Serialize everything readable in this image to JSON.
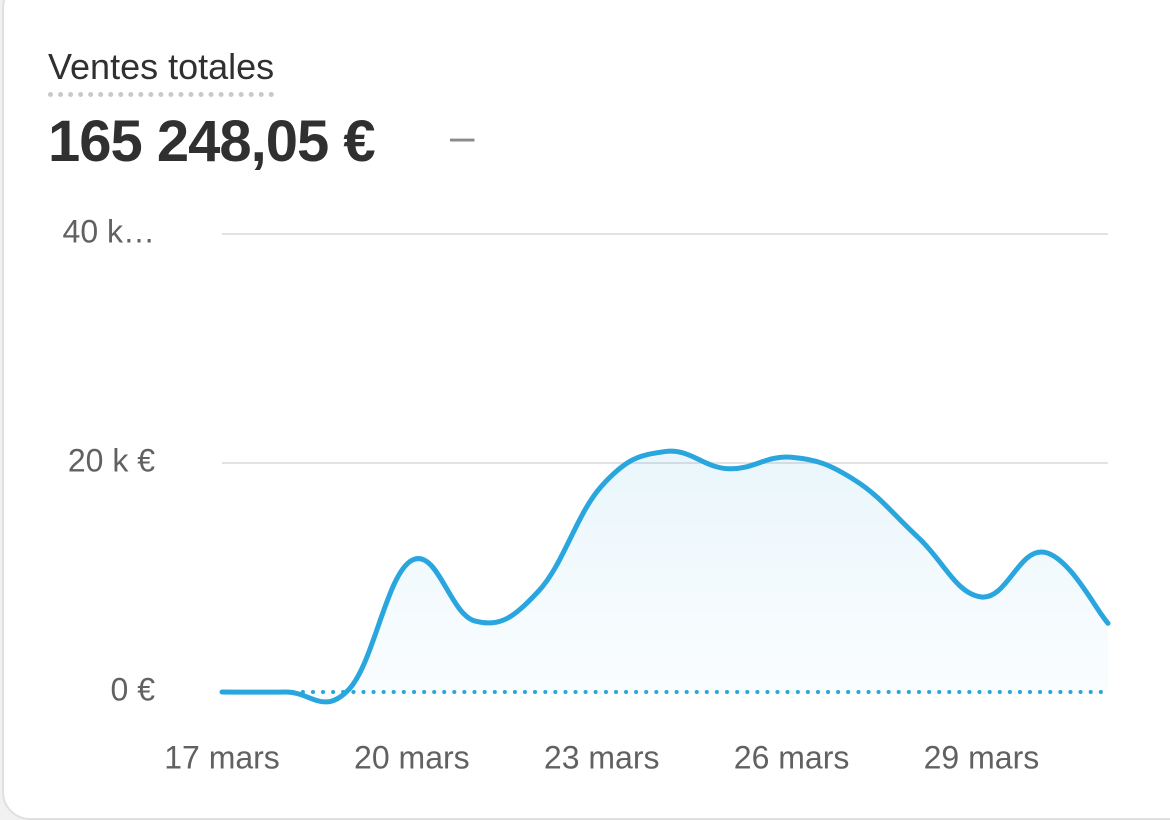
{
  "card": {
    "title": "Ventes totales",
    "total": "165 248,05 €",
    "change": "–"
  },
  "chart_data": {
    "type": "line",
    "categories": [
      "17 mars",
      null,
      null,
      "20 mars",
      null,
      null,
      "23 mars",
      null,
      null,
      "26 mars",
      null,
      null,
      "29 mars",
      null,
      null
    ],
    "series": [
      {
        "color": "#2aa6df",
        "values": [
          0,
          0,
          0.2,
          11.5,
          6.2,
          8.8,
          18,
          21,
          19.5,
          20.5,
          18.5,
          13.5,
          8.3,
          12.2,
          6
        ],
        "area": true
      },
      {
        "color": "#2aa6df",
        "values": [
          0,
          0,
          0,
          0,
          0,
          0,
          0,
          0,
          0,
          0,
          0,
          0,
          0,
          0,
          0
        ],
        "dotted": true
      }
    ],
    "ylim": [
      0,
      40
    ],
    "yticks": [
      {
        "value": 0,
        "label": "0 €"
      },
      {
        "value": 20,
        "label": "20 k €"
      },
      {
        "value": 40,
        "label": "40 k…"
      }
    ],
    "grid": true
  }
}
